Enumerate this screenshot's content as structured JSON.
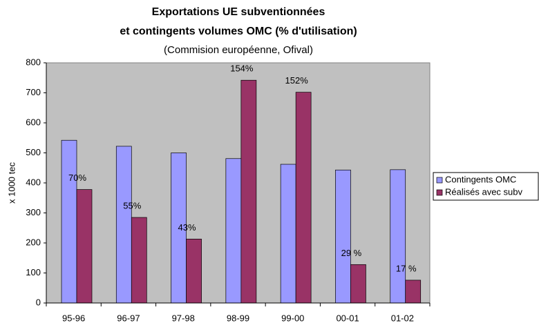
{
  "chart_data": {
    "type": "bar",
    "title": [
      "Exportations UE subventionnées",
      "et contingents volumes OMC (% d'utilisation)"
    ],
    "subtitle": "(Commision européenne, Ofival)",
    "y_label": "x 1000 tec",
    "categories": [
      "95-96",
      "96-97",
      "97-98",
      "98-99",
      "99-00",
      "00-01",
      "01-02"
    ],
    "series": [
      {
        "name": "Contingents OMC",
        "color": "#9999ff",
        "values": [
          542,
          522,
          500,
          481,
          462,
          443,
          444
        ]
      },
      {
        "name": "Réalisés avec subv",
        "color": "#993366",
        "values": [
          378,
          285,
          213,
          742,
          702,
          128,
          76
        ]
      }
    ],
    "utilisation_labels": [
      "70%",
      "55%",
      "43%",
      "154%",
      "152%",
      "29 %",
      "17 %"
    ],
    "ylim": [
      0,
      800
    ],
    "yticks": [
      0,
      100,
      200,
      300,
      400,
      500,
      600,
      700,
      800
    ],
    "grid": false,
    "legend": "right",
    "plot_background": "#c0c0c0"
  }
}
